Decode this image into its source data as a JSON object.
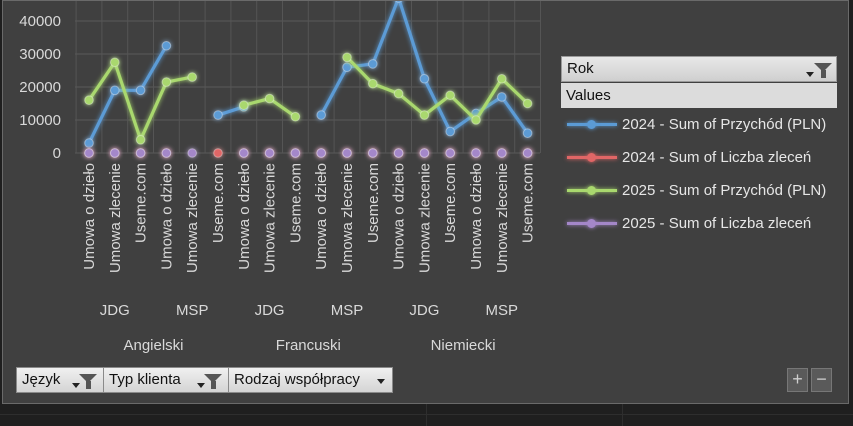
{
  "chart_data": {
    "type": "line",
    "y_ticks": [
      "40000",
      "30000",
      "20000",
      "10000",
      "0"
    ],
    "ylim": [
      0,
      40000
    ],
    "grid": true,
    "categories": [
      "Umowa o dzieło",
      "Umowa zlecenie",
      "Useme.com",
      "Umowa o dzieło",
      "Umowa zlecenie",
      "Useme.com",
      "Umowa o dzieło",
      "Umowa zlecenie",
      "Useme.com",
      "Umowa o dzieło",
      "Umowa zlecenie",
      "Useme.com",
      "Umowa o dzieło",
      "Umowa zlecenie",
      "Useme.com",
      "Umowa o dzieło",
      "Umowa zlecenie",
      "Useme.com"
    ],
    "client_groups": [
      {
        "label": "JDG",
        "span": [
          0,
          2
        ]
      },
      {
        "label": "MSP",
        "span": [
          3,
          5
        ]
      },
      {
        "label": "JDG",
        "span": [
          6,
          8
        ]
      },
      {
        "label": "MSP",
        "span": [
          9,
          11
        ]
      },
      {
        "label": "JDG",
        "span": [
          12,
          14
        ]
      },
      {
        "label": "MSP",
        "span": [
          15,
          17
        ]
      }
    ],
    "language_groups": [
      {
        "label": "Angielski",
        "span": [
          0,
          5
        ]
      },
      {
        "label": "Francuski",
        "span": [
          6,
          11
        ]
      },
      {
        "label": "Niemiecki",
        "span": [
          12,
          17
        ]
      }
    ],
    "series": [
      {
        "name": "2024 - Sum of Przychód (PLN)",
        "color": "#5b9bd5",
        "values": [
          3000,
          19000,
          19000,
          32500,
          null,
          11500,
          14000,
          null,
          null,
          11500,
          26000,
          27000,
          47000,
          22500,
          6500,
          12000,
          17000,
          6000
        ]
      },
      {
        "name": "2024 - Sum of Liczba zleceń",
        "color": "#e06666",
        "values": [
          0,
          0,
          0,
          0,
          null,
          0,
          0,
          0,
          0,
          0,
          0,
          0,
          0,
          0,
          0,
          0,
          0,
          0
        ]
      },
      {
        "name": "2025 - Sum of Przychód (PLN)",
        "color": "#a9d86e",
        "values": [
          16000,
          27500,
          4000,
          21500,
          23000,
          null,
          14500,
          16500,
          11000,
          null,
          29000,
          21000,
          18000,
          11500,
          17500,
          10000,
          22500,
          15000
        ]
      },
      {
        "name": "2025 - Sum of Liczba zleceń",
        "color": "#a487c9",
        "values": [
          0,
          0,
          0,
          0,
          0,
          null,
          0,
          0,
          0,
          0,
          0,
          0,
          0,
          0,
          0,
          0,
          0,
          0
        ]
      }
    ]
  },
  "legend": {
    "field_label": "Rok",
    "values_label": "Values"
  },
  "filters": [
    {
      "label": "Język"
    },
    {
      "label": "Typ klienta"
    },
    {
      "label": "Rodzaj współpracy"
    }
  ],
  "zoom_controls": {
    "plus": "+",
    "minus": "−"
  }
}
